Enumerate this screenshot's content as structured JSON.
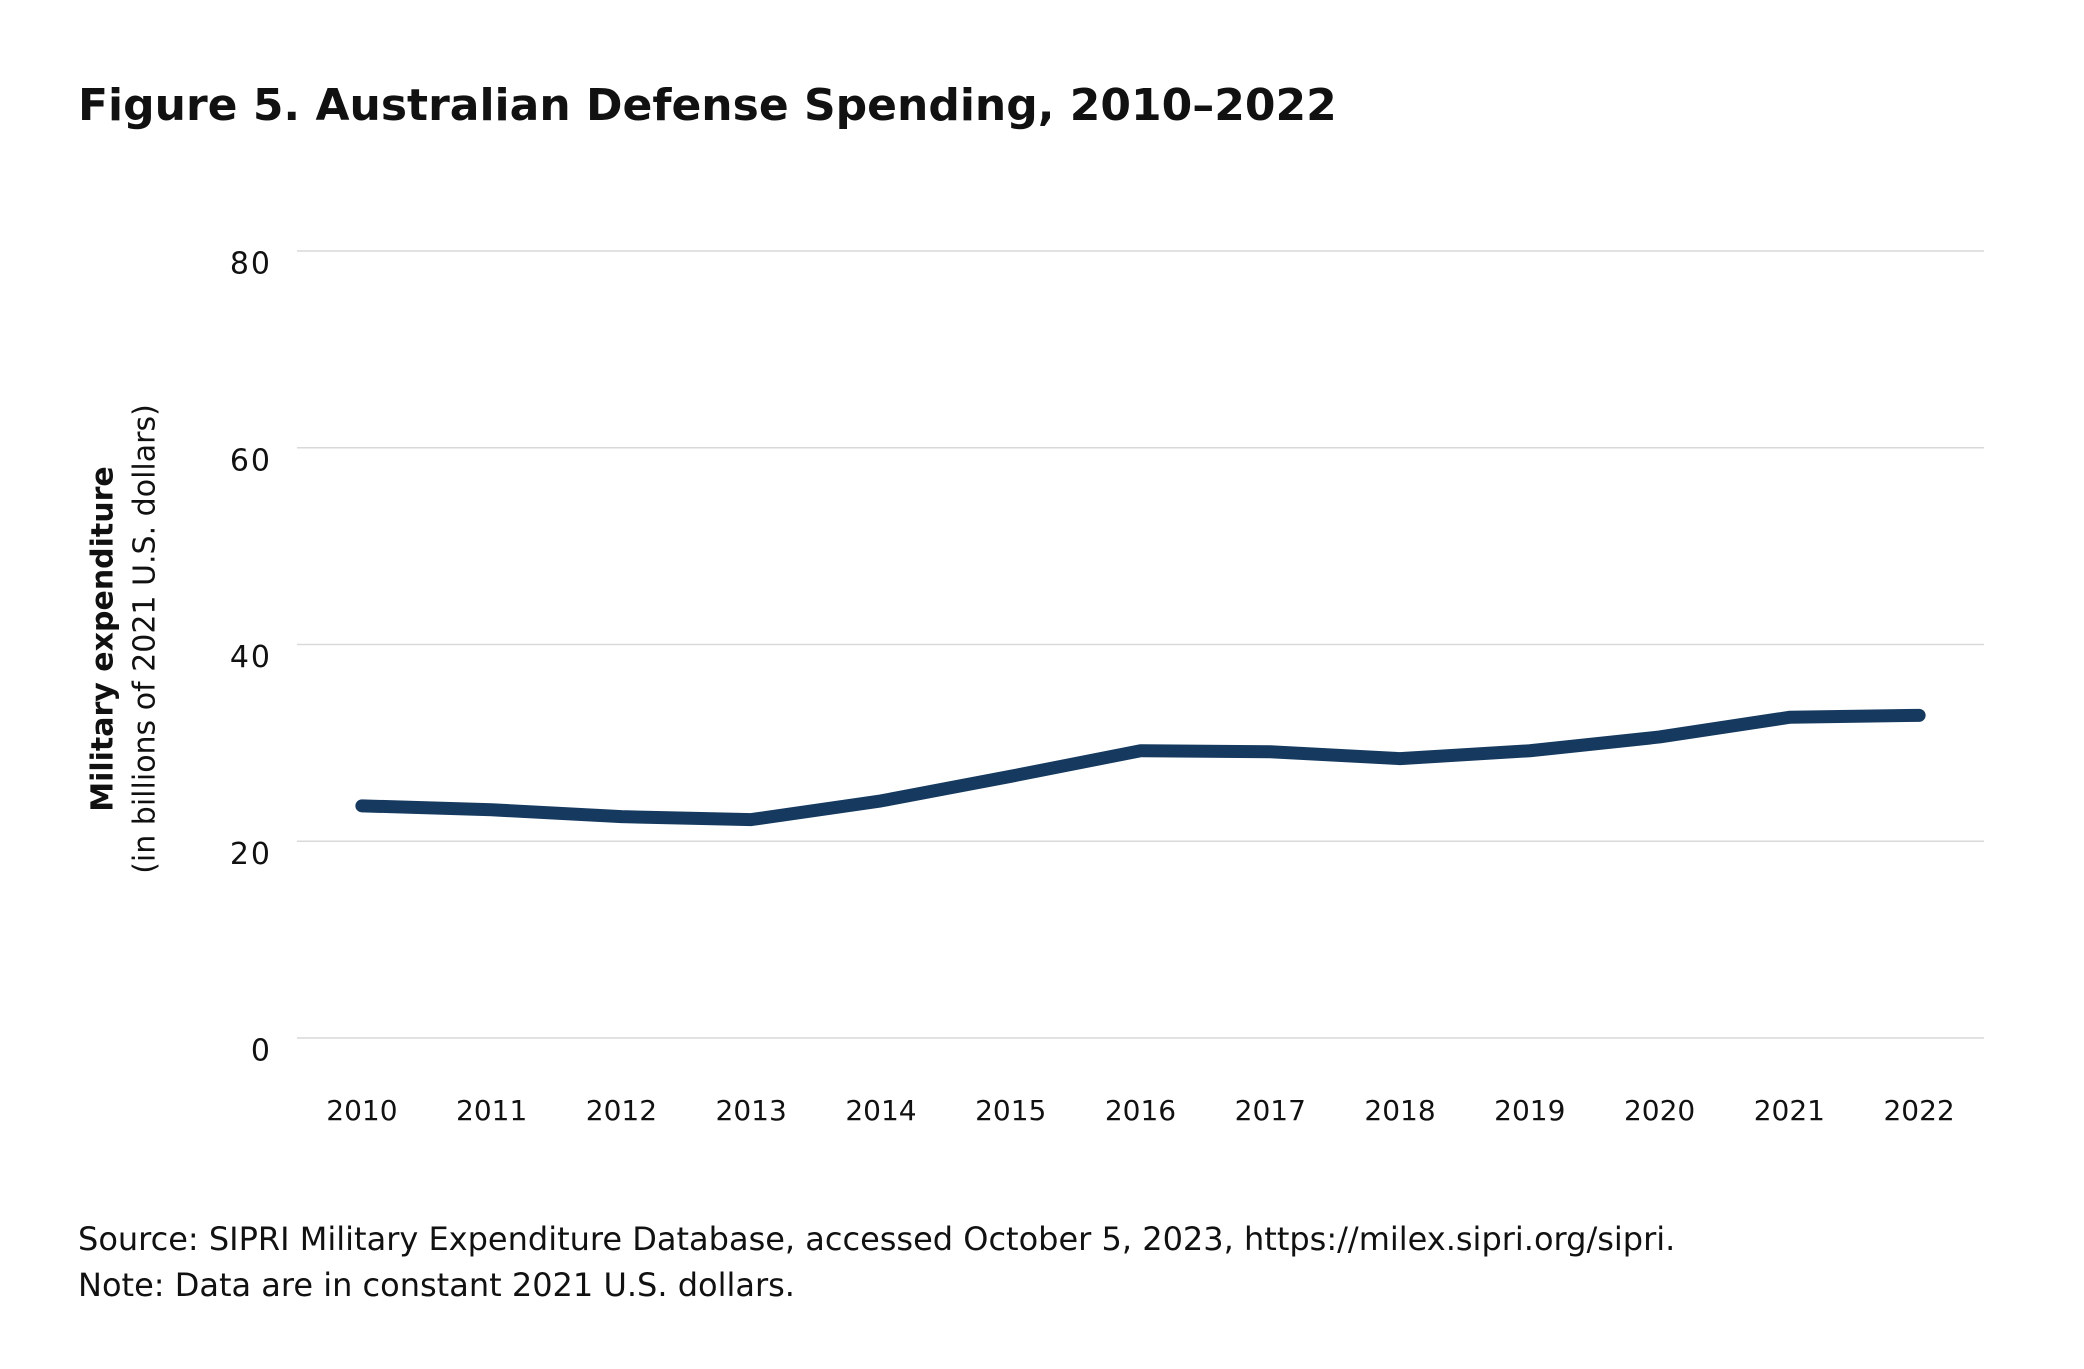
{
  "chart_data": {
    "type": "line",
    "title": "Figure 5. Australian Defense Spending, 2010–2022",
    "ylabel": [
      "Military expenditure",
      "(in billions of 2021 U.S. dollars)"
    ],
    "categories": [
      "2010",
      "2011",
      "2012",
      "2013",
      "2014",
      "2015",
      "2016",
      "2017",
      "2018",
      "2019",
      "2020",
      "2021",
      "2022"
    ],
    "values": [
      23.6,
      23.2,
      22.5,
      22.2,
      24.1,
      26.6,
      29.2,
      29.1,
      28.4,
      29.2,
      30.6,
      32.6,
      32.8
    ],
    "color": "#163a5f",
    "ylim": [
      0,
      80
    ],
    "yticks": [
      0,
      20,
      40,
      60,
      80
    ],
    "grid": true,
    "source": "Source: SIPRI Military Expenditure Database, accessed October 5, 2023, https://milex.sipri.org/sipri.",
    "note": "Note: Data are in constant 2021 U.S. dollars."
  }
}
